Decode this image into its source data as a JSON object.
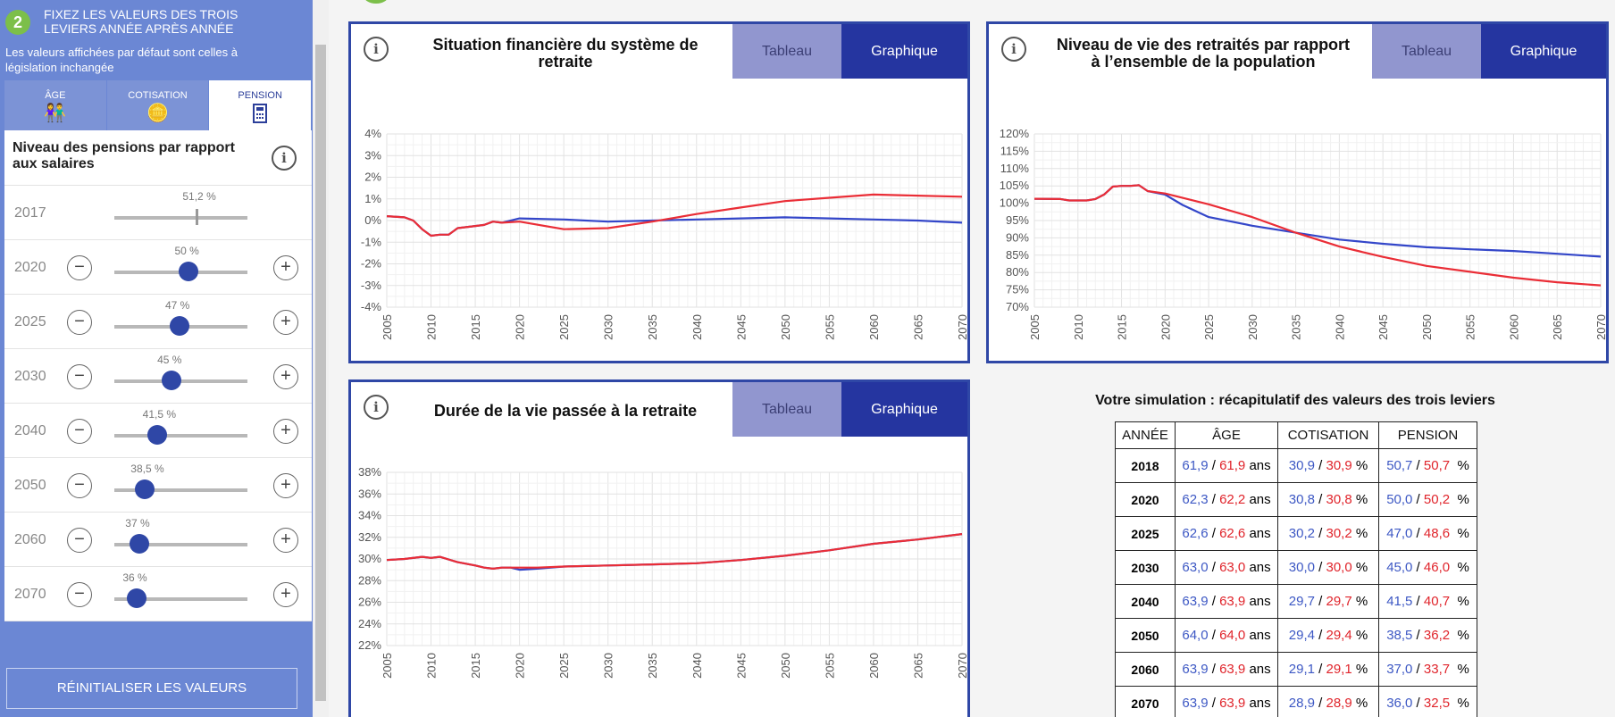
{
  "sidebar": {
    "step_number": "2",
    "step_title": "FIXEZ LES VALEURS DES TROIS LEVIERS ANNÉE APRÈS ANNÉE",
    "step_note": "Les valeurs affichées par défaut sont celles à législation inchangée",
    "tabs": [
      {
        "label": "ÂGE",
        "icon": "elderly-couple-icon"
      },
      {
        "label": "COTISATION",
        "icon": "coins-icon"
      },
      {
        "label": "PENSION",
        "icon": "calculator-icon"
      }
    ],
    "panel_title": "Niveau des pensions par rapport aux salaires",
    "rows": [
      {
        "year": "2017",
        "value": "51,2 %",
        "level": 0.62,
        "locked": true
      },
      {
        "year": "2020",
        "value": "50 %",
        "level": 0.56
      },
      {
        "year": "2025",
        "value": "47 %",
        "level": 0.49
      },
      {
        "year": "2030",
        "value": "45 %",
        "level": 0.43
      },
      {
        "year": "2040",
        "value": "41,5 %",
        "level": 0.32
      },
      {
        "year": "2050",
        "value": "38,5 %",
        "level": 0.23
      },
      {
        "year": "2060",
        "value": "37 %",
        "level": 0.19
      },
      {
        "year": "2070",
        "value": "36 %",
        "level": 0.17
      }
    ],
    "reset_label": "RÉINITIALISER LES VALEURS"
  },
  "tab_labels": {
    "table": "Tableau",
    "chart": "Graphique"
  },
  "colors": {
    "accent": "#2f47a6",
    "series_blue": "#3346c9",
    "series_red": "#ea2d36",
    "green": "#7cbf4a"
  },
  "chart_data": [
    {
      "type": "line",
      "title": "Situation financière du système de retraite",
      "ylim": [
        -4,
        4
      ],
      "yticks": [
        "4%",
        "3%",
        "2%",
        "1%",
        "0%",
        "-1%",
        "-2%",
        "-3%",
        "-4%"
      ],
      "xticks": [
        "2005",
        "2010",
        "2015",
        "2020",
        "2025",
        "2030",
        "2035",
        "2040",
        "2045",
        "2050",
        "2055",
        "2060",
        "2065",
        "2070"
      ],
      "series": [
        {
          "color": "blue",
          "points": [
            [
              2005,
              0.2
            ],
            [
              2007,
              0.15
            ],
            [
              2008,
              0.0
            ],
            [
              2009,
              -0.4
            ],
            [
              2010,
              -0.7
            ],
            [
              2011,
              -0.65
            ],
            [
              2012,
              -0.65
            ],
            [
              2013,
              -0.35
            ],
            [
              2015,
              -0.25
            ],
            [
              2016,
              -0.2
            ],
            [
              2017,
              -0.05
            ],
            [
              2018,
              -0.1
            ],
            [
              2020,
              0.1
            ],
            [
              2025,
              0.05
            ],
            [
              2030,
              -0.05
            ],
            [
              2035,
              0.0
            ],
            [
              2040,
              0.05
            ],
            [
              2045,
              0.1
            ],
            [
              2050,
              0.15
            ],
            [
              2055,
              0.1
            ],
            [
              2060,
              0.05
            ],
            [
              2065,
              0.0
            ],
            [
              2070,
              -0.1
            ]
          ]
        },
        {
          "color": "red",
          "points": [
            [
              2005,
              0.2
            ],
            [
              2007,
              0.15
            ],
            [
              2008,
              0.0
            ],
            [
              2009,
              -0.4
            ],
            [
              2010,
              -0.7
            ],
            [
              2011,
              -0.65
            ],
            [
              2012,
              -0.65
            ],
            [
              2013,
              -0.35
            ],
            [
              2015,
              -0.25
            ],
            [
              2016,
              -0.2
            ],
            [
              2017,
              -0.05
            ],
            [
              2018,
              -0.1
            ],
            [
              2020,
              -0.05
            ],
            [
              2025,
              -0.4
            ],
            [
              2030,
              -0.35
            ],
            [
              2035,
              -0.05
            ],
            [
              2040,
              0.3
            ],
            [
              2045,
              0.6
            ],
            [
              2050,
              0.9
            ],
            [
              2055,
              1.05
            ],
            [
              2060,
              1.2
            ],
            [
              2065,
              1.15
            ],
            [
              2070,
              1.1
            ]
          ]
        }
      ]
    },
    {
      "type": "line",
      "title": "Niveau de vie des retraités par rapport à l’ensemble de la population",
      "ylim": [
        70,
        120
      ],
      "yticks": [
        "120%",
        "115%",
        "110%",
        "105%",
        "100%",
        "95%",
        "90%",
        "85%",
        "80%",
        "75%",
        "70%"
      ],
      "xticks": [
        "2005",
        "2010",
        "2015",
        "2020",
        "2025",
        "2030",
        "2035",
        "2040",
        "2045",
        "2050",
        "2055",
        "2060",
        "2065",
        "2070"
      ],
      "series": [
        {
          "color": "blue",
          "points": [
            [
              2005,
              101.3
            ],
            [
              2008,
              101.2
            ],
            [
              2009,
              100.8
            ],
            [
              2011,
              100.8
            ],
            [
              2012,
              101.2
            ],
            [
              2013,
              102.5
            ],
            [
              2014,
              104.8
            ],
            [
              2015,
              105.0
            ],
            [
              2016,
              105.0
            ],
            [
              2017,
              105.2
            ],
            [
              2018,
              103.5
            ],
            [
              2020,
              102.5
            ],
            [
              2022,
              99.5
            ],
            [
              2025,
              96
            ],
            [
              2030,
              93.5
            ],
            [
              2035,
              91.5
            ],
            [
              2040,
              89.5
            ],
            [
              2045,
              88.3
            ],
            [
              2050,
              87.3
            ],
            [
              2055,
              86.7
            ],
            [
              2060,
              86.2
            ],
            [
              2065,
              85.4
            ],
            [
              2070,
              84.6
            ]
          ]
        },
        {
          "color": "red",
          "points": [
            [
              2005,
              101.3
            ],
            [
              2008,
              101.2
            ],
            [
              2009,
              100.8
            ],
            [
              2011,
              100.8
            ],
            [
              2012,
              101.2
            ],
            [
              2013,
              102.5
            ],
            [
              2014,
              104.8
            ],
            [
              2015,
              105.0
            ],
            [
              2016,
              105.0
            ],
            [
              2017,
              105.2
            ],
            [
              2018,
              103.5
            ],
            [
              2020,
              102.8
            ],
            [
              2025,
              99.7
            ],
            [
              2030,
              96
            ],
            [
              2035,
              91.5
            ],
            [
              2040,
              87.5
            ],
            [
              2045,
              84.5
            ],
            [
              2050,
              81.9
            ],
            [
              2055,
              80.2
            ],
            [
              2060,
              78.5
            ],
            [
              2065,
              77.2
            ],
            [
              2070,
              76.3
            ]
          ]
        }
      ]
    },
    {
      "type": "line",
      "title": "Durée de la vie passée à la retraite",
      "ylim": [
        22,
        38
      ],
      "yticks": [
        "38%",
        "36%",
        "34%",
        "32%",
        "30%",
        "28%",
        "26%",
        "24%",
        "22%"
      ],
      "xticks": [
        "2005",
        "2010",
        "2015",
        "2020",
        "2025",
        "2030",
        "2035",
        "2040",
        "2045",
        "2050",
        "2055",
        "2060",
        "2065",
        "2070"
      ],
      "series": [
        {
          "color": "blue",
          "points": [
            [
              2005,
              29.9
            ],
            [
              2007,
              30.0
            ],
            [
              2009,
              30.2
            ],
            [
              2010,
              30.1
            ],
            [
              2011,
              30.2
            ],
            [
              2013,
              29.7
            ],
            [
              2015,
              29.4
            ],
            [
              2016,
              29.2
            ],
            [
              2017,
              29.1
            ],
            [
              2018,
              29.2
            ],
            [
              2019,
              29.2
            ],
            [
              2020,
              29.0
            ],
            [
              2022,
              29.1
            ],
            [
              2025,
              29.3
            ],
            [
              2030,
              29.4
            ],
            [
              2035,
              29.5
            ],
            [
              2040,
              29.6
            ],
            [
              2045,
              29.9
            ],
            [
              2050,
              30.3
            ],
            [
              2055,
              30.8
            ],
            [
              2060,
              31.4
            ],
            [
              2065,
              31.8
            ],
            [
              2070,
              32.3
            ]
          ]
        },
        {
          "color": "red",
          "points": [
            [
              2005,
              29.9
            ],
            [
              2007,
              30.0
            ],
            [
              2009,
              30.2
            ],
            [
              2010,
              30.1
            ],
            [
              2011,
              30.2
            ],
            [
              2013,
              29.7
            ],
            [
              2015,
              29.4
            ],
            [
              2016,
              29.2
            ],
            [
              2017,
              29.1
            ],
            [
              2018,
              29.2
            ],
            [
              2019,
              29.2
            ],
            [
              2020,
              29.2
            ],
            [
              2022,
              29.2
            ],
            [
              2025,
              29.3
            ],
            [
              2030,
              29.4
            ],
            [
              2035,
              29.5
            ],
            [
              2040,
              29.6
            ],
            [
              2045,
              29.9
            ],
            [
              2050,
              30.3
            ],
            [
              2055,
              30.8
            ],
            [
              2060,
              31.4
            ],
            [
              2065,
              31.8
            ],
            [
              2070,
              32.3
            ]
          ]
        }
      ]
    }
  ],
  "summary": {
    "title": "Votre simulation : récapitulatif des valeurs des trois leviers",
    "headers": [
      "ANNÉE",
      "ÂGE",
      "COTISATION",
      "PENSION"
    ],
    "unit_age": "ans",
    "unit_pct": "%",
    "rows": [
      {
        "year": "2018",
        "age": [
          "61,9",
          "61,9"
        ],
        "cot": [
          "30,9",
          "30,9"
        ],
        "pen": [
          "50,7",
          "50,7"
        ]
      },
      {
        "year": "2020",
        "age": [
          "62,3",
          "62,2"
        ],
        "cot": [
          "30,8",
          "30,8"
        ],
        "pen": [
          "50,0",
          "50,2"
        ]
      },
      {
        "year": "2025",
        "age": [
          "62,6",
          "62,6"
        ],
        "cot": [
          "30,2",
          "30,2"
        ],
        "pen": [
          "47,0",
          "48,6"
        ]
      },
      {
        "year": "2030",
        "age": [
          "63,0",
          "63,0"
        ],
        "cot": [
          "30,0",
          "30,0"
        ],
        "pen": [
          "45,0",
          "46,0"
        ]
      },
      {
        "year": "2040",
        "age": [
          "63,9",
          "63,9"
        ],
        "cot": [
          "29,7",
          "29,7"
        ],
        "pen": [
          "41,5",
          "40,7"
        ]
      },
      {
        "year": "2050",
        "age": [
          "64,0",
          "64,0"
        ],
        "cot": [
          "29,4",
          "29,4"
        ],
        "pen": [
          "38,5",
          "36,2"
        ]
      },
      {
        "year": "2060",
        "age": [
          "63,9",
          "63,9"
        ],
        "cot": [
          "29,1",
          "29,1"
        ],
        "pen": [
          "37,0",
          "33,7"
        ]
      },
      {
        "year": "2070",
        "age": [
          "63,9",
          "63,9"
        ],
        "cot": [
          "28,9",
          "28,9"
        ],
        "pen": [
          "36,0",
          "32,5"
        ]
      }
    ]
  }
}
